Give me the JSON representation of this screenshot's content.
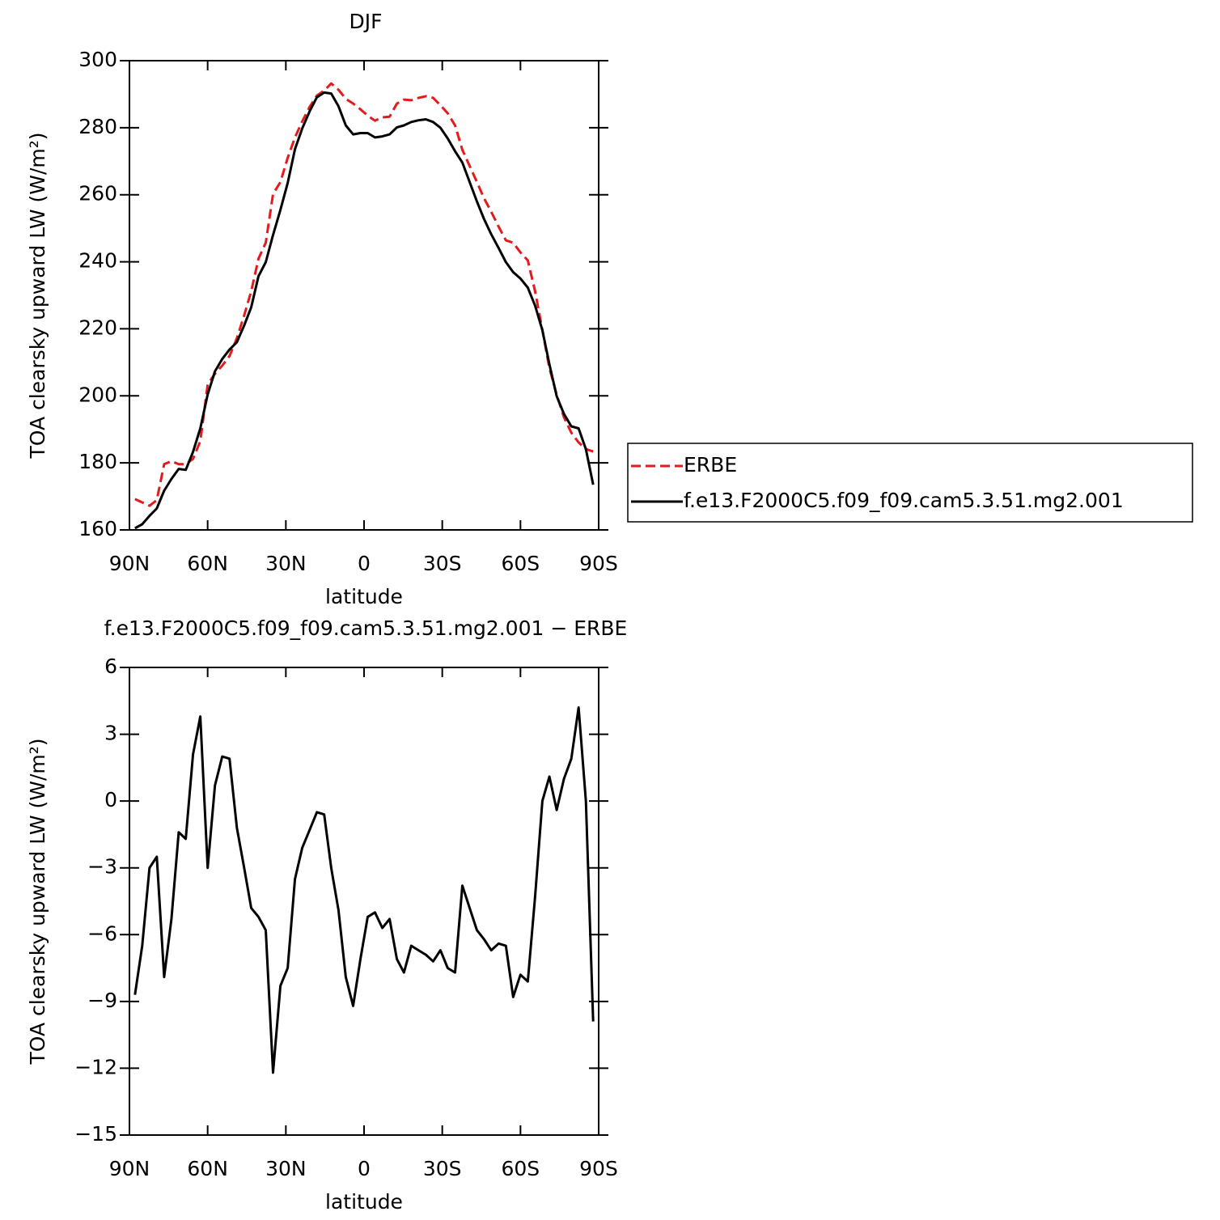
{
  "chart_data": [
    {
      "type": "line",
      "title": "DJF",
      "xlabel": "latitude",
      "ylabel": "TOA clearsky upward LW (W/m²)",
      "xlim": [
        90,
        -90
      ],
      "ylim": [
        160,
        300
      ],
      "xticks": [
        {
          "value": 90,
          "label": "90N"
        },
        {
          "value": 60,
          "label": "60N"
        },
        {
          "value": 30,
          "label": "30N"
        },
        0,
        {
          "value": -30,
          "label": "30S"
        },
        {
          "value": -60,
          "label": "60S"
        },
        {
          "value": -90,
          "label": "90S"
        }
      ],
      "yticks": [
        160,
        180,
        200,
        220,
        240,
        260,
        280,
        300
      ],
      "legend": "right",
      "x": [
        87.9,
        85.1,
        82.3,
        79.5,
        76.7,
        73.9,
        71.1,
        68.4,
        65.6,
        62.8,
        60.0,
        57.2,
        54.4,
        51.6,
        48.8,
        46.0,
        43.3,
        40.5,
        37.7,
        34.9,
        32.1,
        29.3,
        26.5,
        23.7,
        20.9,
        18.1,
        15.3,
        12.6,
        9.8,
        7.0,
        4.2,
        1.4,
        -1.4,
        -4.2,
        -7.0,
        -9.8,
        -12.6,
        -15.3,
        -18.1,
        -20.9,
        -23.7,
        -26.5,
        -29.3,
        -32.1,
        -34.9,
        -37.7,
        -40.5,
        -43.3,
        -46.0,
        -48.8,
        -51.6,
        -54.4,
        -57.2,
        -60.0,
        -62.8,
        -65.6,
        -68.4,
        -71.1,
        -73.9,
        -76.7,
        -79.5,
        -82.3,
        -85.1,
        -87.9
      ],
      "series": [
        {
          "name": "ERBE",
          "color": "#e41a1c",
          "style": "dashed",
          "values": [
            169.2,
            168.2,
            167.2,
            168.9,
            179.6,
            180.5,
            179.6,
            179.6,
            181.2,
            186.5,
            203.4,
            206.6,
            209.0,
            211.9,
            217.2,
            224.0,
            231.2,
            240.9,
            245.7,
            260.2,
            263.8,
            271.0,
            277.1,
            281.9,
            286.2,
            289.6,
            291.1,
            293.2,
            291.3,
            288.6,
            287.2,
            285.5,
            283.6,
            282.1,
            283.1,
            283.3,
            287.2,
            288.4,
            288.2,
            288.9,
            289.4,
            288.9,
            286.7,
            284.3,
            280.7,
            273.4,
            268.6,
            263.8,
            259.0,
            254.9,
            250.5,
            246.4,
            245.7,
            242.8,
            240.4,
            231.2,
            219.6,
            208.3,
            200.3,
            193.6,
            189.0,
            186.1,
            184.1,
            183.4
          ]
        },
        {
          "name": "f.e13.F2000C5.f09_f09.cam5.3.51.mg2.001",
          "color": "#000000",
          "style": "solid",
          "values": [
            160.5,
            161.7,
            164.2,
            166.4,
            171.7,
            175.2,
            178.2,
            177.9,
            183.3,
            190.3,
            200.4,
            207.3,
            211.0,
            213.8,
            216.0,
            221.0,
            226.4,
            235.7,
            239.9,
            248.0,
            255.5,
            263.5,
            273.6,
            279.8,
            284.9,
            289.1,
            290.5,
            290.2,
            286.4,
            280.7,
            278.0,
            278.4,
            278.4,
            277.1,
            277.4,
            278.0,
            280.1,
            280.7,
            281.7,
            282.2,
            282.5,
            281.7,
            280.0,
            276.8,
            273.0,
            269.6,
            263.8,
            258.0,
            252.8,
            248.2,
            244.1,
            239.9,
            236.9,
            235.0,
            232.3,
            226.9,
            219.6,
            209.4,
            199.9,
            194.6,
            190.9,
            190.3,
            184.1,
            173.5
          ]
        }
      ]
    },
    {
      "type": "line",
      "title": "f.e13.F2000C5.f09_f09.cam5.3.51.mg2.001 − ERBE",
      "xlabel": "latitude",
      "ylabel": "TOA clearsky upward LW (W/m²)",
      "xlim": [
        90,
        -90
      ],
      "ylim": [
        -15,
        6
      ],
      "xticks": [
        {
          "value": 90,
          "label": "90N"
        },
        {
          "value": 60,
          "label": "60N"
        },
        {
          "value": 30,
          "label": "30N"
        },
        0,
        {
          "value": -30,
          "label": "30S"
        },
        {
          "value": -60,
          "label": "60S"
        },
        {
          "value": -90,
          "label": "90S"
        }
      ],
      "yticks": [
        {
          "value": -15,
          "label": "−15"
        },
        {
          "value": -12,
          "label": "−12"
        },
        {
          "value": -9,
          "label": "−9"
        },
        {
          "value": -6,
          "label": "−6"
        },
        {
          "value": -3,
          "label": "−3"
        },
        0,
        3,
        6
      ],
      "x": [
        87.9,
        85.1,
        82.3,
        79.5,
        76.7,
        73.9,
        71.1,
        68.4,
        65.6,
        62.8,
        60.0,
        57.2,
        54.4,
        51.6,
        48.8,
        46.0,
        43.3,
        40.5,
        37.7,
        34.9,
        32.1,
        29.3,
        26.5,
        23.7,
        20.9,
        18.1,
        15.3,
        12.6,
        9.8,
        7.0,
        4.2,
        1.4,
        -1.4,
        -4.2,
        -7.0,
        -9.8,
        -12.6,
        -15.3,
        -18.1,
        -20.9,
        -23.7,
        -26.5,
        -29.3,
        -32.1,
        -34.9,
        -37.7,
        -40.5,
        -43.3,
        -46.0,
        -48.8,
        -51.6,
        -54.4,
        -57.2,
        -60.0,
        -62.8,
        -65.6,
        -68.4,
        -71.1,
        -73.9,
        -76.7,
        -79.5,
        -82.3,
        -85.1,
        -87.9
      ],
      "series": [
        {
          "color": "#000000",
          "style": "solid",
          "values": [
            -8.7,
            -6.5,
            -3.0,
            -2.5,
            -7.9,
            -5.3,
            -1.4,
            -1.7,
            2.1,
            3.8,
            -3.0,
            0.7,
            2.0,
            1.9,
            -1.2,
            -3.0,
            -4.8,
            -5.2,
            -5.8,
            -12.2,
            -8.3,
            -7.5,
            -3.5,
            -2.1,
            -1.3,
            -0.5,
            -0.6,
            -3.0,
            -4.9,
            -7.9,
            -9.2,
            -7.1,
            -5.2,
            -5.0,
            -5.7,
            -5.3,
            -7.1,
            -7.7,
            -6.5,
            -6.7,
            -6.9,
            -7.2,
            -6.7,
            -7.5,
            -7.7,
            -3.8,
            -4.8,
            -5.8,
            -6.2,
            -6.7,
            -6.4,
            -6.5,
            -8.8,
            -7.8,
            -8.1,
            -4.3,
            0.0,
            1.1,
            -0.4,
            1.0,
            1.9,
            4.2,
            0.0,
            -9.9
          ]
        }
      ]
    }
  ]
}
